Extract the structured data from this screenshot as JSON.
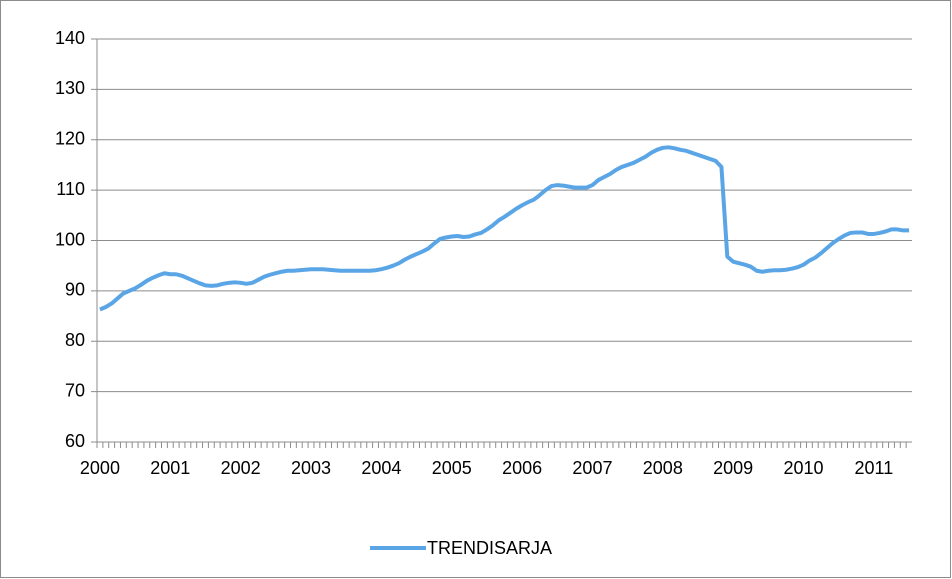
{
  "chart_data": {
    "type": "line",
    "categories": [
      "2000",
      null,
      null,
      null,
      null,
      null,
      null,
      null,
      null,
      null,
      null,
      null,
      "2001",
      null,
      null,
      null,
      null,
      null,
      null,
      null,
      null,
      null,
      null,
      null,
      "2002",
      null,
      null,
      null,
      null,
      null,
      null,
      null,
      null,
      null,
      null,
      null,
      "2003",
      null,
      null,
      null,
      null,
      null,
      null,
      null,
      null,
      null,
      null,
      null,
      "2004",
      null,
      null,
      null,
      null,
      null,
      null,
      null,
      null,
      null,
      null,
      null,
      "2005",
      null,
      null,
      null,
      null,
      null,
      null,
      null,
      null,
      null,
      null,
      null,
      "2006",
      null,
      null,
      null,
      null,
      null,
      null,
      null,
      null,
      null,
      null,
      null,
      "2007",
      null,
      null,
      null,
      null,
      null,
      null,
      null,
      null,
      null,
      null,
      null,
      "2008",
      null,
      null,
      null,
      null,
      null,
      null,
      null,
      null,
      null,
      null,
      null,
      "2009",
      null,
      null,
      null,
      null,
      null,
      null,
      null,
      null,
      null,
      null,
      null,
      "2010",
      null,
      null,
      null,
      null,
      null,
      null,
      null,
      null,
      null,
      null,
      null,
      "2011",
      null,
      null,
      null,
      null,
      null,
      null
    ],
    "series": [
      {
        "name": "TRENDISARJA",
        "color": "#5aa5e6",
        "values": [
          86.3,
          86.8,
          87.5,
          88.5,
          89.5,
          90,
          90.5,
          91.2,
          92,
          92.6,
          93.1,
          93.5,
          93.3,
          93.3,
          93,
          92.5,
          92,
          91.5,
          91.1,
          91,
          91.1,
          91.4,
          91.6,
          91.7,
          91.6,
          91.4,
          91.6,
          92.2,
          92.8,
          93.2,
          93.5,
          93.8,
          94,
          94,
          94.1,
          94.2,
          94.3,
          94.3,
          94.3,
          94.2,
          94.1,
          94,
          94,
          94,
          94,
          94,
          94,
          94.1,
          94.3,
          94.6,
          95,
          95.5,
          96.2,
          96.8,
          97.3,
          97.8,
          98.4,
          99.4,
          100.3,
          100.6,
          100.8,
          100.9,
          100.7,
          100.8,
          101.2,
          101.5,
          102.2,
          103,
          104,
          104.7,
          105.5,
          106.3,
          107,
          107.6,
          108.1,
          109,
          110,
          110.8,
          111,
          110.9,
          110.7,
          110.5,
          110.5,
          110.5,
          111,
          112,
          112.6,
          113.2,
          114,
          114.6,
          115,
          115.4,
          116,
          116.6,
          117.4,
          118,
          118.4,
          118.5,
          118.3,
          118,
          117.8,
          117.4,
          117,
          116.6,
          116.2,
          115.8,
          114.6,
          96.8,
          95.8,
          95.5,
          95.2,
          94.8,
          94,
          93.8,
          94,
          94.1,
          94.1,
          94.2,
          94.4,
          94.7,
          95.2,
          96,
          96.6,
          97.5,
          98.5,
          99.5,
          100.3,
          101,
          101.5,
          101.6,
          101.6,
          101.3,
          101.3,
          101.5,
          101.8,
          102.2,
          102.2,
          102,
          102
        ]
      }
    ],
    "ylim": [
      60,
      140
    ],
    "yticks": [
      60,
      70,
      80,
      90,
      100,
      110,
      120,
      130,
      140
    ],
    "grid": true,
    "legend": "bottom"
  }
}
